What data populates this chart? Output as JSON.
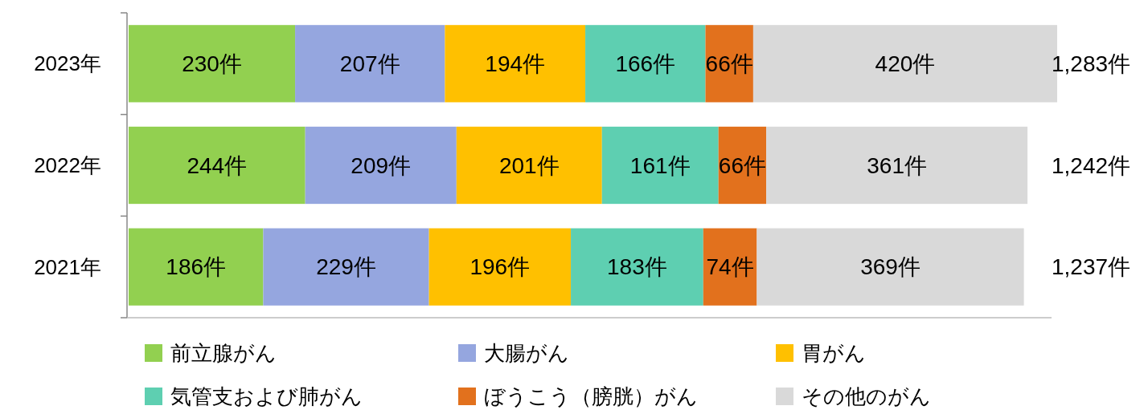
{
  "chart_data": {
    "type": "bar",
    "orientation": "horizontal",
    "stacked": true,
    "categories": [
      "2023年",
      "2022年",
      "2021年"
    ],
    "series": [
      {
        "name": "前立腺がん",
        "color": "#92d050",
        "values": [
          230,
          244,
          186
        ],
        "value_labels": [
          "230件",
          "244件",
          "186件"
        ]
      },
      {
        "name": "大腸がん",
        "color": "#95a6df",
        "values": [
          207,
          209,
          229
        ],
        "value_labels": [
          "207件",
          "209件",
          "229件"
        ]
      },
      {
        "name": "胃がん",
        "color": "#ffc000",
        "values": [
          194,
          201,
          196
        ],
        "value_labels": [
          "194件",
          "201件",
          "196件"
        ]
      },
      {
        "name": "気管支および肺がん",
        "color": "#5ecfb1",
        "values": [
          166,
          161,
          183
        ],
        "value_labels": [
          "166件",
          "161件",
          "183件"
        ]
      },
      {
        "name": "ぼうこう（膀胱）がん",
        "color": "#e2711d",
        "values": [
          66,
          66,
          74
        ],
        "value_labels": [
          "66件",
          "66件",
          "74件"
        ]
      },
      {
        "name": "その他のがん",
        "color": "#d9d9d9",
        "values": [
          420,
          361,
          369
        ],
        "value_labels": [
          "420件",
          "361件",
          "369件"
        ]
      }
    ],
    "totals": [
      "1,283件",
      "1,242件",
      "1,237件"
    ],
    "legend": "bottom"
  }
}
